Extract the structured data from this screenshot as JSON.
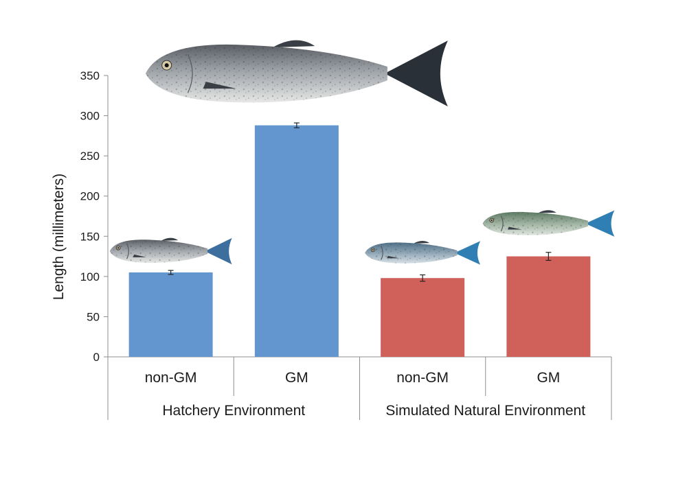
{
  "chart_data": {
    "type": "bar",
    "title": "",
    "xlabel": "",
    "ylabel": "Length (millimeters)",
    "ylim": [
      0,
      350
    ],
    "yticks": [
      0,
      50,
      100,
      150,
      200,
      250,
      300,
      350
    ],
    "categories": [
      "non-GM",
      "GM",
      "non-GM",
      "GM"
    ],
    "groups": [
      {
        "label": "Hatchery Environment",
        "categories": [
          0,
          1
        ]
      },
      {
        "label": "Simulated Natural Environment",
        "categories": [
          2,
          3
        ]
      }
    ],
    "values": [
      105,
      288,
      98,
      125
    ],
    "errors": [
      2.5,
      3,
      4,
      5
    ],
    "bar_colors": [
      "#6396cf",
      "#6396cf",
      "#cf605a",
      "#cf605a"
    ],
    "grid": false,
    "legend": "none",
    "fish_icons": [
      {
        "icon": "small-trout-photo",
        "category": 0
      },
      {
        "icon": "large-trout-photo",
        "category": 1
      },
      {
        "icon": "small-trout-photo",
        "category": 2
      },
      {
        "icon": "small-trout-photo",
        "category": 3
      }
    ]
  }
}
